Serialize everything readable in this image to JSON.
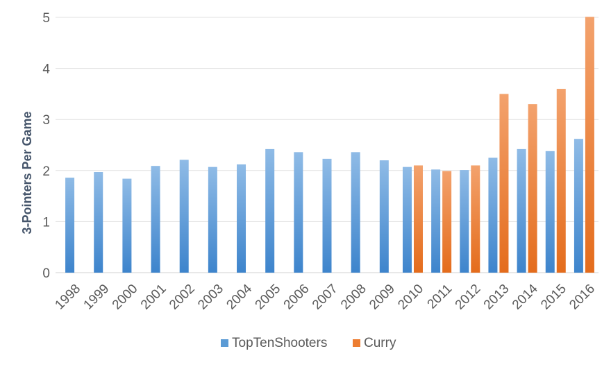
{
  "chart_data": {
    "type": "bar",
    "categories": [
      "1998",
      "1999",
      "2000",
      "2001",
      "2002",
      "2003",
      "2004",
      "2005",
      "2006",
      "2007",
      "2008",
      "2009",
      "2010",
      "2011",
      "2012",
      "2013",
      "2014",
      "2015",
      "2016"
    ],
    "series": [
      {
        "name": "TopTenShooters",
        "color": "#5b9bd5",
        "values": [
          1.86,
          1.97,
          1.84,
          2.09,
          2.21,
          2.07,
          2.12,
          2.42,
          2.36,
          2.23,
          2.36,
          2.2,
          2.07,
          2.02,
          2.01,
          2.25,
          2.42,
          2.38,
          2.62
        ]
      },
      {
        "name": "Curry",
        "color": "#ed7d31",
        "values": [
          null,
          null,
          null,
          null,
          null,
          null,
          null,
          null,
          null,
          null,
          null,
          null,
          2.1,
          1.99,
          2.1,
          3.5,
          3.3,
          3.6,
          5.01
        ]
      }
    ],
    "title": "",
    "xlabel": "",
    "ylabel": "3-Pointers Per Game",
    "ylim": [
      0,
      5
    ],
    "yticks": [
      "0",
      "1",
      "2",
      "3",
      "4",
      "5"
    ],
    "grid": true,
    "legend_position": "bottom"
  }
}
